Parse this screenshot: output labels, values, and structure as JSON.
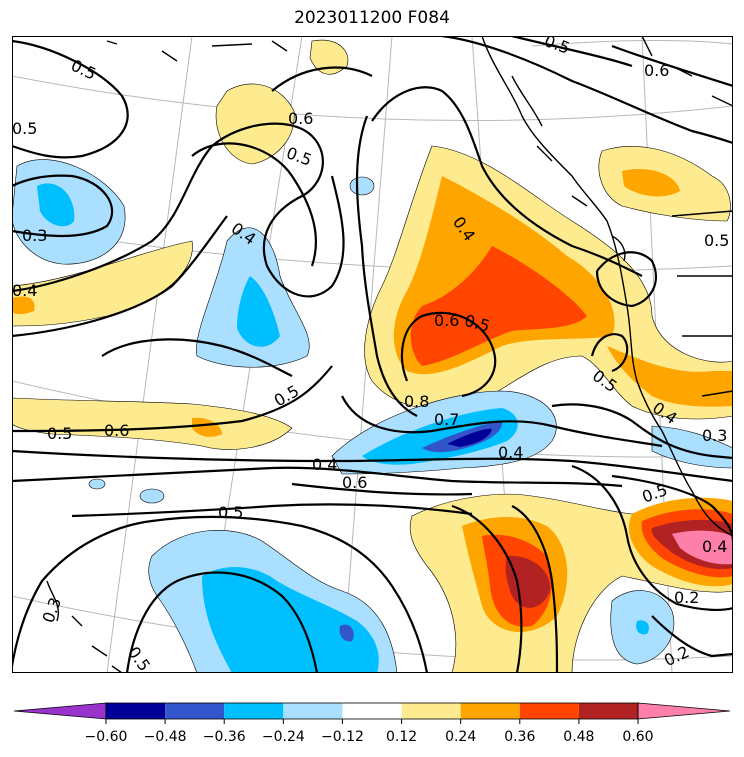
{
  "title": "2023011200 F084",
  "colorbar": {
    "colors": [
      "#9933cc",
      "#000099",
      "#3355cc",
      "#00bfff",
      "#aadfff",
      "#ffffff",
      "#ffeb8f",
      "#ffa500",
      "#ff4500",
      "#b22222",
      "#ff7fab"
    ],
    "ticks": [
      "−0.60",
      "−0.48",
      "−0.36",
      "−0.24",
      "−0.12",
      "0.12",
      "0.24",
      "0.36",
      "0.48",
      "0.60"
    ]
  },
  "contour_labels": [
    {
      "id": "l1",
      "text": "0.5"
    },
    {
      "id": "l2",
      "text": "0.5"
    },
    {
      "id": "l3",
      "text": "0.6"
    },
    {
      "id": "l4",
      "text": "0.5"
    },
    {
      "id": "l5",
      "text": "0.5"
    },
    {
      "id": "l6",
      "text": "0.6"
    },
    {
      "id": "l7",
      "text": "0.3"
    },
    {
      "id": "l8",
      "text": "0.4"
    },
    {
      "id": "l9",
      "text": "0.4"
    },
    {
      "id": "l10",
      "text": "0.4"
    },
    {
      "id": "l11",
      "text": "0.5"
    },
    {
      "id": "l12",
      "text": "0.6"
    },
    {
      "id": "l13",
      "text": "0.5"
    },
    {
      "id": "l14",
      "text": "0.5"
    },
    {
      "id": "l15",
      "text": "0.5"
    },
    {
      "id": "l16",
      "text": "0.8"
    },
    {
      "id": "l17",
      "text": "0.7"
    },
    {
      "id": "l18",
      "text": "0.4"
    },
    {
      "id": "l19",
      "text": "0.3"
    },
    {
      "id": "l20",
      "text": "0.5"
    },
    {
      "id": "l21",
      "text": "0.6"
    },
    {
      "id": "l22",
      "text": "0.4"
    },
    {
      "id": "l23",
      "text": "0.4"
    },
    {
      "id": "l24",
      "text": "0.6"
    },
    {
      "id": "l25",
      "text": "0.5"
    },
    {
      "id": "l26",
      "text": "0.4"
    },
    {
      "id": "l27",
      "text": "0.2"
    },
    {
      "id": "l28",
      "text": "0.2"
    },
    {
      "id": "l29",
      "text": "0.3"
    },
    {
      "id": "l30",
      "text": "0.5"
    },
    {
      "id": "l31",
      "text": "0.5"
    }
  ]
}
